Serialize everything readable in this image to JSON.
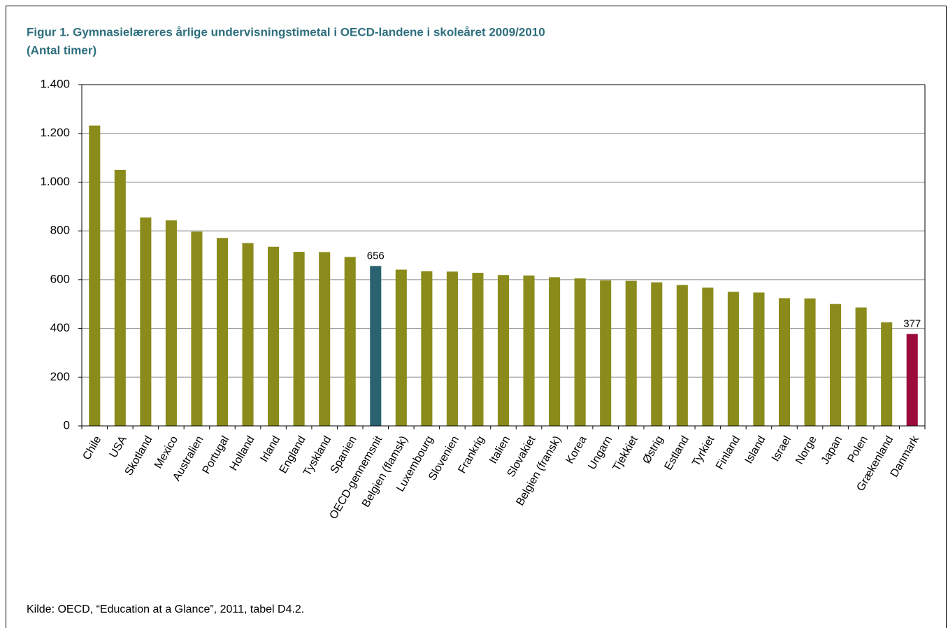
{
  "chart_data": {
    "type": "bar",
    "title": "Figur 1. Gymnasielæreres årlige undervisningstimetal i OECD-landene i skoleåret 2009/2010",
    "subtitle": "(Antal timer)",
    "source": "Kilde:  OECD, “Education at a Glance”, 2011, tabel D4.2.",
    "categories": [
      "Chile",
      "USA",
      "Skotland",
      "Mexico",
      "Australien",
      "Portugal",
      "Holland",
      "Irland",
      "England",
      "Tyskland",
      "Spanien",
      "OECD-gennemsnit",
      "Belgien (flamsk)",
      "Luxembourg",
      "Slovenien",
      "Frankrig",
      "Italien",
      "Slovakiet",
      "Belgien (fransk)",
      "Korea",
      "Ungarn",
      "Tjekkiet",
      "Østrig",
      "Estland",
      "Tyrkiet",
      "Finland",
      "Island",
      "Israel",
      "Norge",
      "Japan",
      "Polen",
      "Grækenland",
      "Danmark"
    ],
    "values": [
      1232,
      1050,
      855,
      843,
      797,
      771,
      750,
      735,
      714,
      713,
      693,
      656,
      641,
      634,
      633,
      628,
      619,
      617,
      610,
      605,
      597,
      595,
      589,
      578,
      567,
      550,
      547,
      524,
      523,
      500,
      486,
      425,
      377
    ],
    "value_labels": [
      null,
      null,
      null,
      null,
      null,
      null,
      null,
      null,
      null,
      null,
      null,
      "656",
      null,
      null,
      null,
      null,
      null,
      null,
      null,
      null,
      null,
      null,
      null,
      null,
      null,
      null,
      null,
      null,
      null,
      null,
      null,
      null,
      "377"
    ],
    "colors": [
      "#8b8b1b",
      "#8b8b1b",
      "#8b8b1b",
      "#8b8b1b",
      "#8b8b1b",
      "#8b8b1b",
      "#8b8b1b",
      "#8b8b1b",
      "#8b8b1b",
      "#8b8b1b",
      "#8b8b1b",
      "#2b6271",
      "#8b8b1b",
      "#8b8b1b",
      "#8b8b1b",
      "#8b8b1b",
      "#8b8b1b",
      "#8b8b1b",
      "#8b8b1b",
      "#8b8b1b",
      "#8b8b1b",
      "#8b8b1b",
      "#8b8b1b",
      "#8b8b1b",
      "#8b8b1b",
      "#8b8b1b",
      "#8b8b1b",
      "#8b8b1b",
      "#8b8b1b",
      "#8b8b1b",
      "#8b8b1b",
      "#8b8b1b",
      "#9b0b3b"
    ],
    "ylim": [
      0,
      1400
    ],
    "yticks": [
      0,
      200,
      400,
      600,
      800,
      {
        "value": 1000,
        "label": "1.000"
      },
      {
        "value": 1200,
        "label": "1.200"
      },
      {
        "value": 1400,
        "label": "1.400"
      }
    ],
    "grid": true
  }
}
